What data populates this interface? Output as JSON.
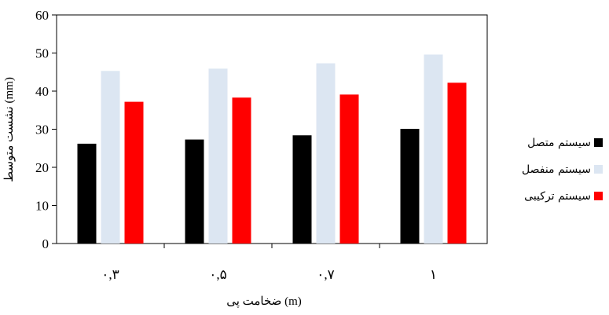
{
  "chart_data": {
    "type": "bar",
    "categories": [
      "۰,۳",
      "۰,۵",
      "۰,۷",
      "۱"
    ],
    "series": [
      {
        "name": "سیستم متصل",
        "color": "#000000",
        "values": [
          26.2,
          27.3,
          28.4,
          30.1
        ]
      },
      {
        "name": "سیستم منفصل",
        "color": "#dce6f2",
        "values": [
          45.3,
          45.9,
          47.3,
          49.6
        ]
      },
      {
        "name": "سیستم ترکیبی",
        "color": "#ff0000",
        "values": [
          37.2,
          38.3,
          39.1,
          42.2
        ]
      }
    ],
    "xlabel": "ضخامت پی (m)",
    "ylabel": "نشست متوسط (mm)",
    "ylim": [
      0,
      60
    ],
    "yticks": [
      0,
      10,
      20,
      30,
      40,
      50,
      60
    ],
    "grid": false,
    "legend_position": "right"
  }
}
